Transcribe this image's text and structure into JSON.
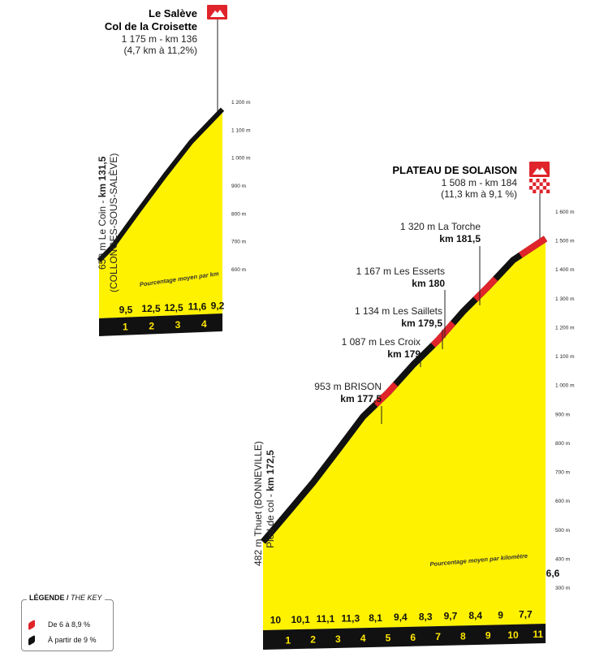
{
  "chart_data": [
    {
      "type": "area",
      "title": "Le Salève",
      "subtitle": "Col de la Croisette",
      "summit_info": "1 175 m - km 136",
      "summit_stats": "(4,7 km à 11,2%)",
      "start_label_bold": "km 131,5",
      "start_label_line1": "650 m Le Coin - ",
      "start_label_line2": "(COLLONGES-SOUS-SALÈVE)",
      "note": "Pourcentage moyen par km",
      "y_ticks": [
        "600 m",
        "700 m",
        "800 m",
        "900 m",
        "1 000 m",
        "1 100 m",
        "1 200 m"
      ],
      "ylim": [
        600,
        1200
      ],
      "km_labels": [
        "1",
        "2",
        "3",
        "4"
      ],
      "percentages": [
        "9,5",
        "12,5",
        "12,5",
        "11,6",
        "9,2"
      ],
      "profile": [
        {
          "km": 0,
          "alt": 650
        },
        {
          "km": 0.5,
          "alt": 696
        },
        {
          "km": 1.5,
          "alt": 822
        },
        {
          "km": 2.5,
          "alt": 945
        },
        {
          "km": 3.5,
          "alt": 1062
        },
        {
          "km": 4.7,
          "alt": 1175
        }
      ]
    },
    {
      "type": "area",
      "title": "PLATEAU DE SOLAISON",
      "summit_info": "1 508 m - km 184",
      "summit_stats": "(11,3 km à 9,1 %)",
      "start_label_bold": "km 172,5",
      "start_label_line1": "482 m Thuet (BONNEVILLE)",
      "start_label_line2": "Pied de col - ",
      "note": "Pourcentage moyen par kilomètre",
      "y_ticks": [
        "300 m",
        "400 m",
        "500 m",
        "600 m",
        "700 m",
        "800 m",
        "900 m",
        "1 000 m",
        "1 100 m",
        "1 200 m",
        "1 300 m",
        "1 400 m",
        "1 500 m",
        "1 600 m"
      ],
      "ylim": [
        300,
        1600
      ],
      "km_labels": [
        "1",
        "2",
        "3",
        "4",
        "5",
        "6",
        "7",
        "8",
        "9",
        "10",
        "11"
      ],
      "percentages": [
        "10",
        "10,1",
        "11,1",
        "11,3",
        "8,1",
        "9,4",
        "8,3",
        "9,7",
        "8,4",
        "9",
        "7,7",
        "6,6"
      ],
      "profile": [
        {
          "km": 0,
          "alt": 482
        },
        {
          "km": 1,
          "alt": 582
        },
        {
          "km": 2,
          "alt": 683
        },
        {
          "km": 3,
          "alt": 794
        },
        {
          "km": 4,
          "alt": 907
        },
        {
          "km": 5,
          "alt": 988
        },
        {
          "km": 6,
          "alt": 1082
        },
        {
          "km": 7,
          "alt": 1165
        },
        {
          "km": 8,
          "alt": 1262
        },
        {
          "km": 9,
          "alt": 1346
        },
        {
          "km": 10,
          "alt": 1436
        },
        {
          "km": 11.3,
          "alt": 1508
        }
      ],
      "red_segments": [
        [
          4.5,
          5.3
        ],
        [
          6.8,
          7.6
        ],
        [
          8.5,
          9.3
        ],
        [
          10.3,
          11.3
        ]
      ],
      "annotations": [
        {
          "name": "953 m BRISON",
          "km": "km 177,5"
        },
        {
          "name": "1 087 m Les Croix",
          "km": "km 179"
        },
        {
          "name": "1 134 m Les Saillets",
          "km": "km 179,5"
        },
        {
          "name": "1 167 m Les Esserts",
          "km": "km 180"
        },
        {
          "name": "1 320 m La Torche",
          "km": "km 181,5"
        }
      ]
    }
  ],
  "legend": {
    "title": "LÉGENDE",
    "title_en": "THE KEY",
    "items": [
      {
        "label": "De 6 à 8,9 %",
        "color": "#e0242b"
      },
      {
        "label": "À partir de 9 %",
        "color": "#111111"
      }
    ]
  },
  "colors": {
    "yellow": "#fff200",
    "black": "#111111",
    "red": "#e0242b"
  }
}
